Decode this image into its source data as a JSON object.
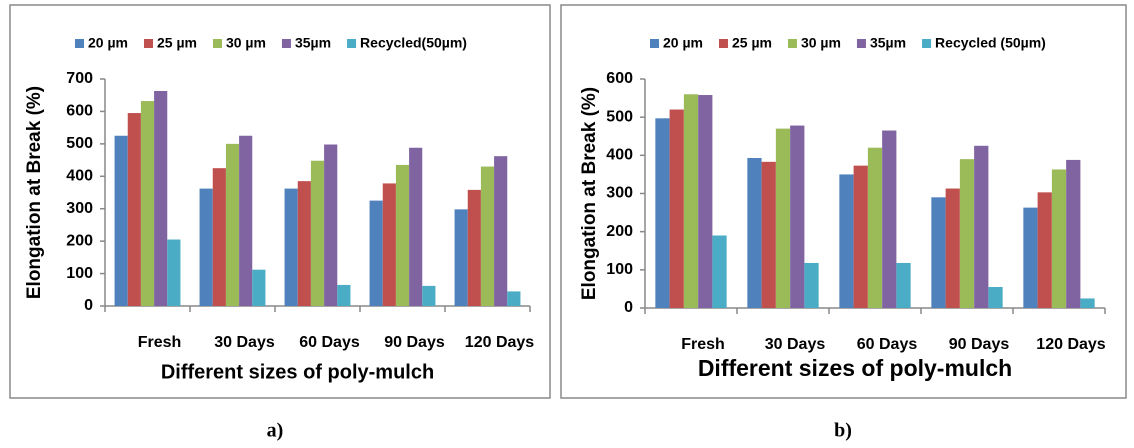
{
  "chart_data": [
    {
      "type": "bar",
      "label": "a)",
      "y_label": "Elongation at Break (%)",
      "x_label": "Different sizes of poly-mulch",
      "categories": [
        "Fresh",
        "30 Days",
        "60 Days",
        "90 Days",
        "120 Days"
      ],
      "series": [
        {
          "name": "20 µm",
          "color": "#4f81bd",
          "values": [
            525,
            362,
            362,
            325,
            298
          ]
        },
        {
          "name": "25 µm",
          "color": "#c0504d",
          "values": [
            595,
            425,
            385,
            378,
            358
          ]
        },
        {
          "name": "30 µm",
          "color": "#9bbb59",
          "values": [
            632,
            500,
            448,
            435,
            430
          ]
        },
        {
          "name": "35µm",
          "color": "#8064a2",
          "values": [
            663,
            525,
            498,
            488,
            462
          ]
        },
        {
          "name": "Recycled(50µm)",
          "color": "#4bacc6",
          "values": [
            205,
            112,
            65,
            62,
            45
          ]
        }
      ],
      "ylim": [
        0,
        700
      ],
      "yticks": [
        0,
        100,
        200,
        300,
        400,
        500,
        600,
        700
      ],
      "legend": "top"
    },
    {
      "type": "bar",
      "label": "b)",
      "y_label": "Elongation at Break (%)",
      "x_label": "Different sizes of poly-mulch",
      "categories": [
        "Fresh",
        "30 Days",
        "60 Days",
        "90 Days",
        "120 Days"
      ],
      "series": [
        {
          "name": "20 µm",
          "color": "#4f81bd",
          "values": [
            497,
            393,
            350,
            290,
            263
          ]
        },
        {
          "name": "25 µm",
          "color": "#c0504d",
          "values": [
            520,
            383,
            373,
            313,
            303
          ]
        },
        {
          "name": "30 µm",
          "color": "#9bbb59",
          "values": [
            560,
            470,
            420,
            390,
            363
          ]
        },
        {
          "name": "35µm",
          "color": "#8064a2",
          "values": [
            558,
            478,
            465,
            425,
            388
          ]
        },
        {
          "name": "Recycled (50µm)",
          "color": "#4bacc6",
          "values": [
            190,
            118,
            118,
            55,
            25
          ]
        }
      ],
      "ylim": [
        0,
        600
      ],
      "yticks": [
        0,
        100,
        200,
        300,
        400,
        500,
        600
      ],
      "legend": "top"
    }
  ]
}
